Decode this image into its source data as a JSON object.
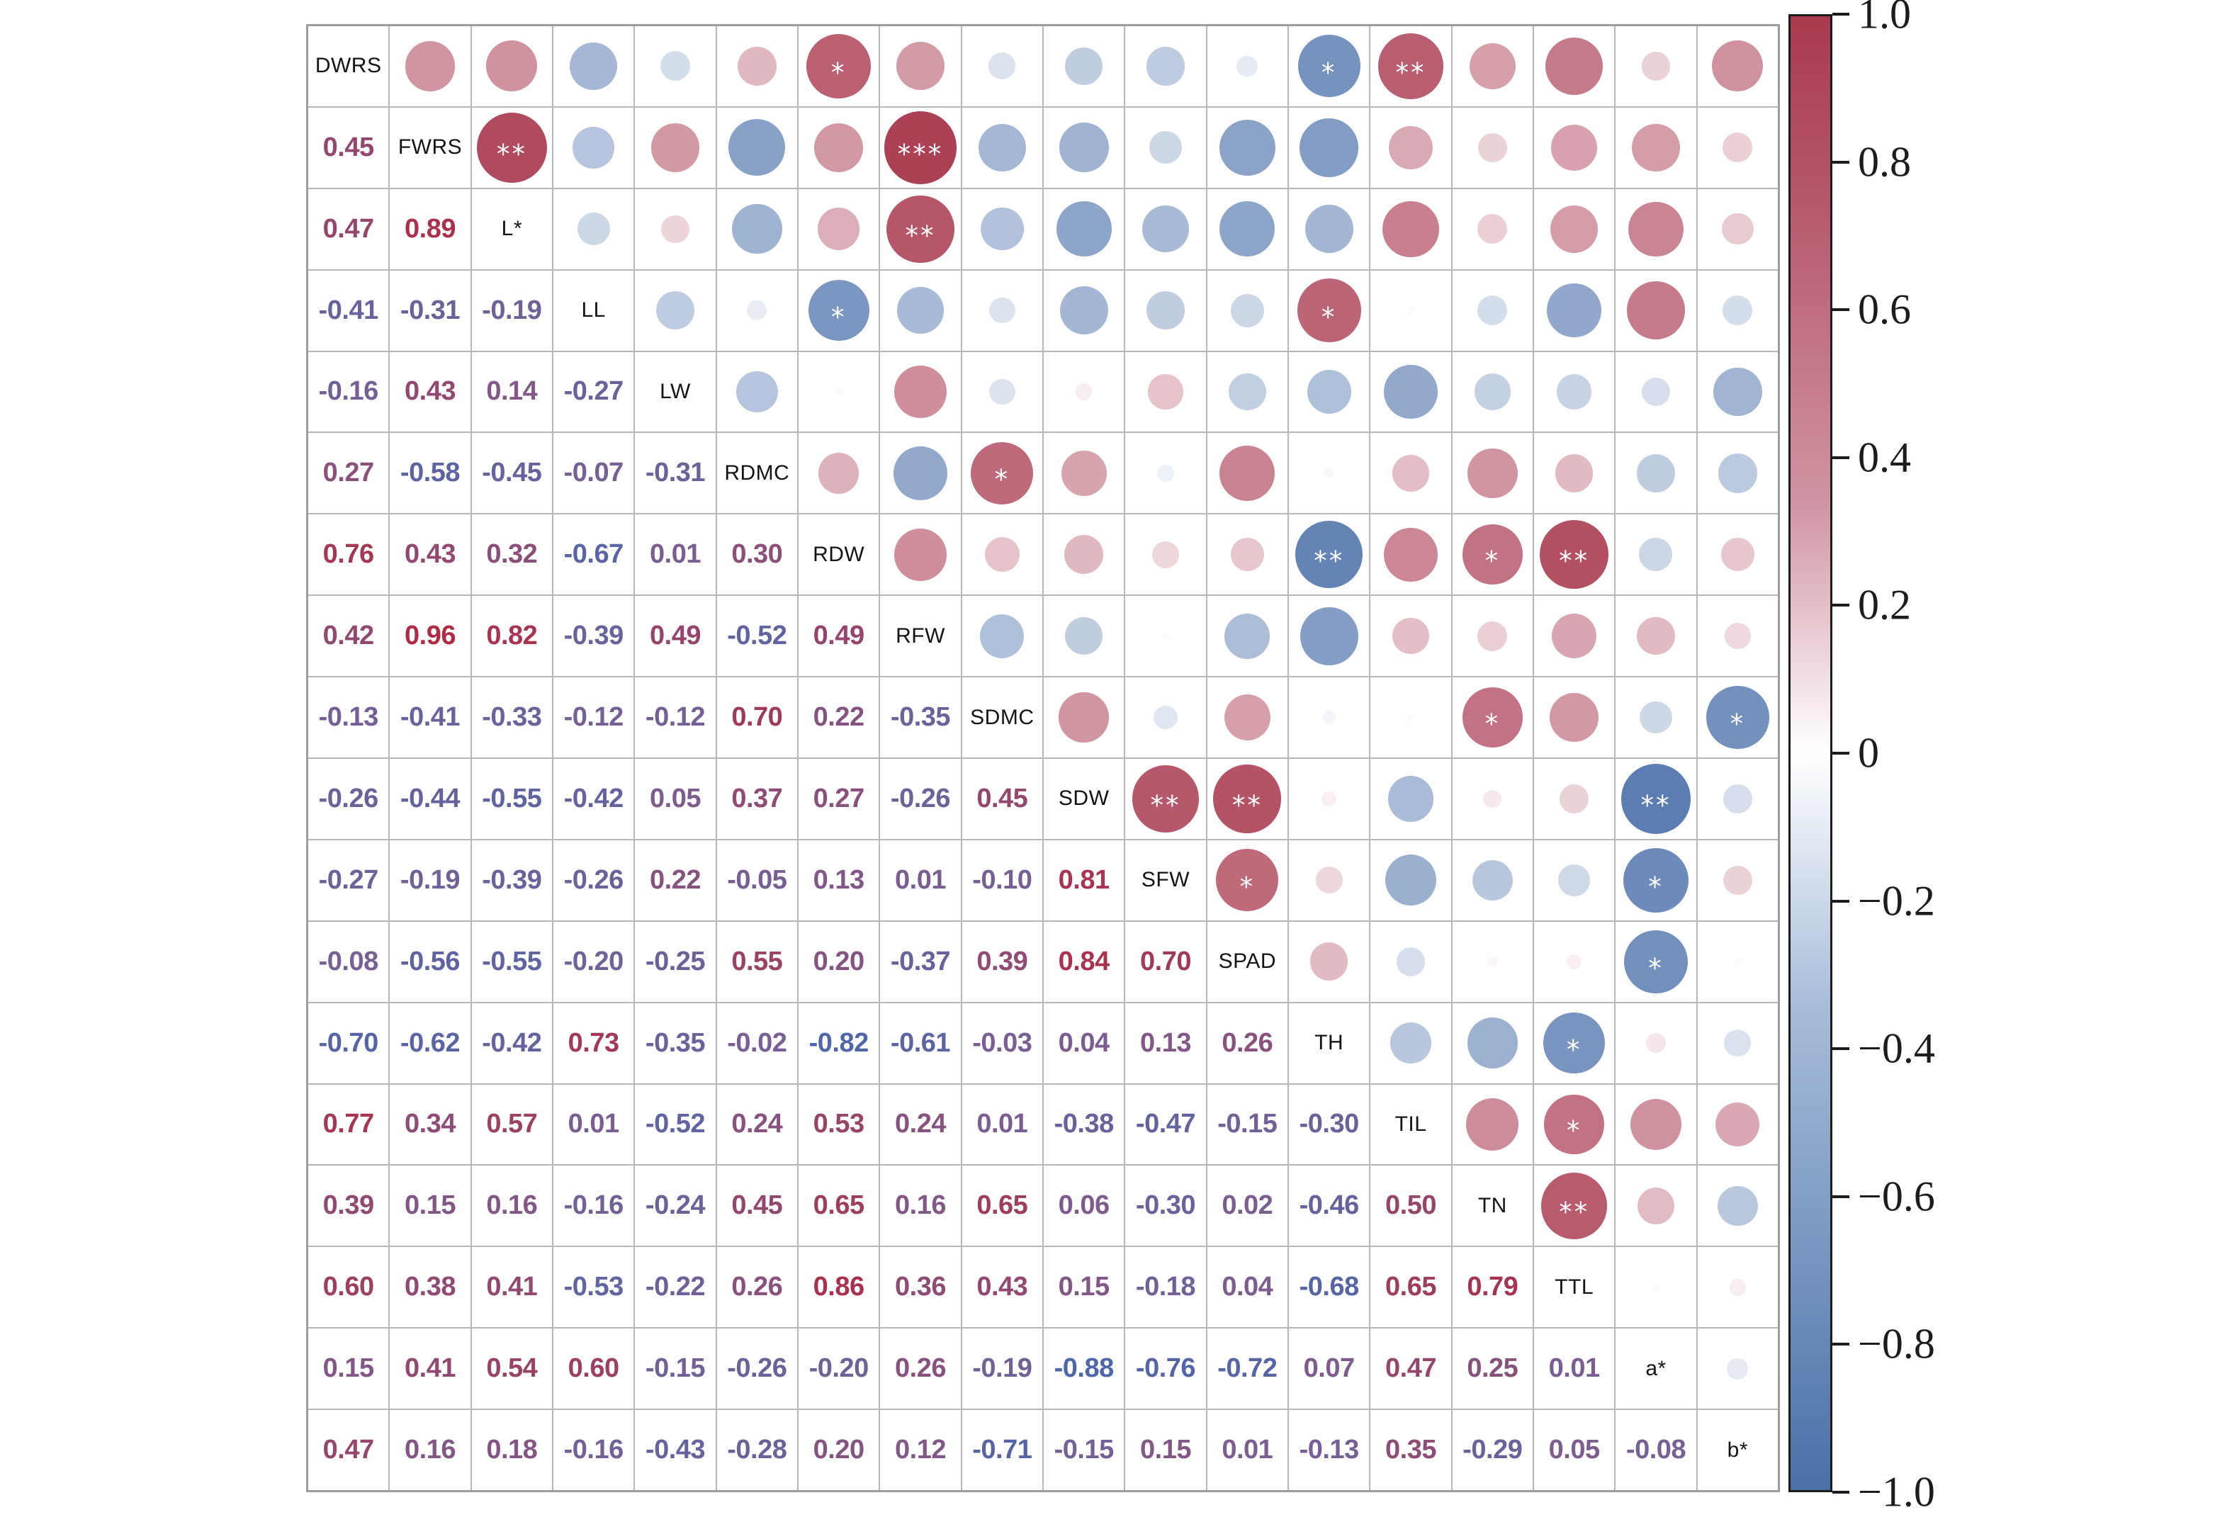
{
  "chart_data": {
    "type": "heatmap",
    "subtype": "correlation-matrix-correlogram",
    "title": "",
    "legend_position": "right",
    "grid": true,
    "value_range": [
      -1,
      1
    ],
    "variables": [
      "DWRS",
      "FWRS",
      "L*",
      "LL",
      "LW",
      "RDMC",
      "RDW",
      "RFW",
      "SDMC",
      "SDW",
      "SFW",
      "SPAD",
      "TH",
      "TIL",
      "TN",
      "TTL",
      "a*",
      "b*"
    ],
    "lower_triangle_values": [
      [
        0.45
      ],
      [
        0.47,
        0.89
      ],
      [
        -0.41,
        -0.31,
        -0.19
      ],
      [
        -0.16,
        0.43,
        0.14,
        -0.27
      ],
      [
        0.27,
        -0.58,
        -0.45,
        -0.07,
        -0.31
      ],
      [
        0.76,
        0.43,
        0.32,
        -0.67,
        0.01,
        0.3
      ],
      [
        0.42,
        0.96,
        0.82,
        -0.39,
        0.49,
        -0.52,
        0.49
      ],
      [
        -0.13,
        -0.41,
        -0.33,
        -0.12,
        -0.12,
        0.7,
        0.22,
        -0.35
      ],
      [
        -0.26,
        -0.44,
        -0.55,
        -0.42,
        0.05,
        0.37,
        0.27,
        -0.26,
        0.45
      ],
      [
        -0.27,
        -0.19,
        -0.39,
        -0.26,
        0.22,
        -0.05,
        0.13,
        0.01,
        -0.1,
        0.81
      ],
      [
        -0.08,
        -0.56,
        -0.55,
        -0.2,
        -0.25,
        0.55,
        0.2,
        -0.37,
        0.39,
        0.84,
        0.7
      ],
      [
        -0.7,
        -0.62,
        -0.42,
        0.73,
        -0.35,
        -0.02,
        -0.82,
        -0.61,
        -0.03,
        0.04,
        0.13,
        0.26
      ],
      [
        0.77,
        0.34,
        0.57,
        0.01,
        -0.52,
        0.24,
        0.53,
        0.24,
        0.01,
        -0.38,
        -0.47,
        -0.15,
        -0.3
      ],
      [
        0.39,
        0.15,
        0.16,
        -0.16,
        -0.24,
        0.45,
        0.65,
        0.16,
        0.65,
        0.06,
        -0.3,
        0.02,
        -0.46,
        0.5
      ],
      [
        0.6,
        0.38,
        0.41,
        -0.53,
        -0.22,
        0.26,
        0.86,
        0.36,
        0.43,
        0.15,
        -0.18,
        0.04,
        -0.68,
        0.65,
        0.79
      ],
      [
        0.15,
        0.41,
        0.54,
        0.6,
        -0.15,
        -0.26,
        -0.2,
        0.26,
        -0.19,
        -0.88,
        -0.76,
        -0.72,
        0.07,
        0.47,
        0.25,
        0.01
      ],
      [
        0.47,
        0.16,
        0.18,
        -0.16,
        -0.43,
        -0.28,
        0.2,
        0.12,
        -0.71,
        -0.15,
        0.15,
        0.01,
        -0.13,
        0.35,
        -0.29,
        0.05,
        -0.08
      ]
    ],
    "significance": [
      {
        "vars": [
          "DWRS",
          "RDW"
        ],
        "stars": "*"
      },
      {
        "vars": [
          "DWRS",
          "TH"
        ],
        "stars": "*"
      },
      {
        "vars": [
          "DWRS",
          "TIL"
        ],
        "stars": "**"
      },
      {
        "vars": [
          "FWRS",
          "L*"
        ],
        "stars": "**"
      },
      {
        "vars": [
          "FWRS",
          "RFW"
        ],
        "stars": "***"
      },
      {
        "vars": [
          "L*",
          "RFW"
        ],
        "stars": "**"
      },
      {
        "vars": [
          "LL",
          "RDW"
        ],
        "stars": "*"
      },
      {
        "vars": [
          "LL",
          "TH"
        ],
        "stars": "*"
      },
      {
        "vars": [
          "RDMC",
          "SDMC"
        ],
        "stars": "*"
      },
      {
        "vars": [
          "RDW",
          "TH"
        ],
        "stars": "**"
      },
      {
        "vars": [
          "RDW",
          "TN"
        ],
        "stars": "*"
      },
      {
        "vars": [
          "RDW",
          "TTL"
        ],
        "stars": "**"
      },
      {
        "vars": [
          "SDMC",
          "TN"
        ],
        "stars": "*"
      },
      {
        "vars": [
          "SDMC",
          "b*"
        ],
        "stars": "*"
      },
      {
        "vars": [
          "SDW",
          "SFW"
        ],
        "stars": "**"
      },
      {
        "vars": [
          "SDW",
          "SPAD"
        ],
        "stars": "**"
      },
      {
        "vars": [
          "SDW",
          "a*"
        ],
        "stars": "**"
      },
      {
        "vars": [
          "SFW",
          "SPAD"
        ],
        "stars": "*"
      },
      {
        "vars": [
          "SFW",
          "a*"
        ],
        "stars": "*"
      },
      {
        "vars": [
          "SPAD",
          "a*"
        ],
        "stars": "*"
      },
      {
        "vars": [
          "TH",
          "TTL"
        ],
        "stars": "*"
      },
      {
        "vars": [
          "TIL",
          "TTL"
        ],
        "stars": "*"
      },
      {
        "vars": [
          "TN",
          "TTL"
        ],
        "stars": "**"
      }
    ],
    "colorbar": {
      "min": -1,
      "max": 1,
      "tick_labels": [
        "1.0",
        "0.8",
        "0.6",
        "0.4",
        "0.2",
        "0",
        "−0.2",
        "−0.4",
        "−0.6",
        "−0.8",
        "−1.0"
      ],
      "positive_color": "#a93a50",
      "negative_color": "#4a70a8",
      "mid_color": "#ffffff"
    }
  }
}
